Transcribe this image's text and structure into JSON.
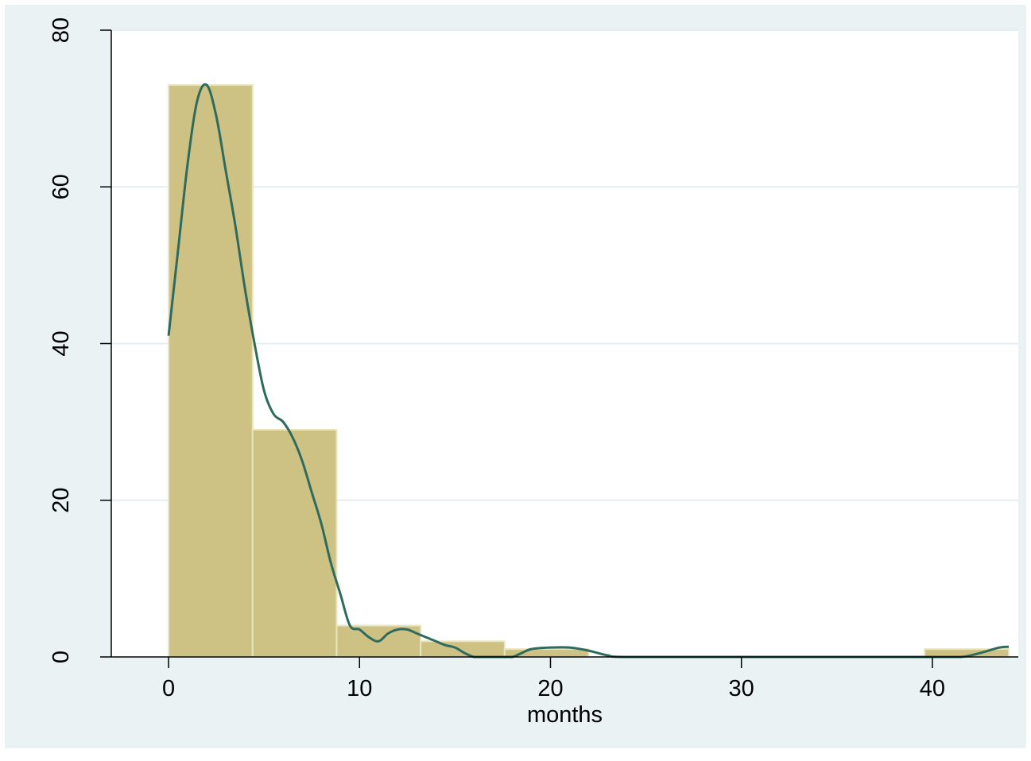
{
  "chart_data": {
    "type": "histogram",
    "title": "",
    "xlabel": "months",
    "ylabel": "",
    "xlim": [
      -3,
      44.5
    ],
    "ylim": [
      0,
      80
    ],
    "x_ticks": [
      0,
      10,
      20,
      30,
      40
    ],
    "y_ticks": [
      0,
      20,
      40,
      60,
      80
    ],
    "x_tick_labels": [
      "0",
      "10",
      "20",
      "30",
      "40"
    ],
    "y_tick_labels": [
      "0",
      "20",
      "40",
      "60",
      "80"
    ],
    "grid": "horizontal",
    "bins": [
      {
        "start": 0.0,
        "end": 4.4,
        "value": 73
      },
      {
        "start": 4.4,
        "end": 8.8,
        "value": 29
      },
      {
        "start": 8.8,
        "end": 13.2,
        "value": 4
      },
      {
        "start": 13.2,
        "end": 17.6,
        "value": 2
      },
      {
        "start": 17.6,
        "end": 22.0,
        "value": 1
      },
      {
        "start": 22.0,
        "end": 26.4,
        "value": 0
      },
      {
        "start": 26.4,
        "end": 30.8,
        "value": 0
      },
      {
        "start": 30.8,
        "end": 35.2,
        "value": 0
      },
      {
        "start": 35.2,
        "end": 39.6,
        "value": 0
      },
      {
        "start": 39.6,
        "end": 44.0,
        "value": 1
      }
    ],
    "density_curve": {
      "x": [
        0,
        0.5,
        1,
        1.5,
        2,
        2.5,
        3,
        3.5,
        4,
        4.5,
        5,
        5.5,
        6,
        6.5,
        7,
        7.5,
        8,
        8.5,
        9,
        9.5,
        10,
        10.5,
        11,
        11.5,
        12,
        12.5,
        13,
        13.5,
        14,
        14.5,
        15,
        15.5,
        16,
        16.5,
        17,
        17.5,
        18,
        18.5,
        19,
        20,
        21,
        22,
        23,
        24,
        30,
        35,
        40,
        41.5,
        42.5,
        43.5,
        44
      ],
      "y": [
        41,
        52,
        63,
        71,
        73,
        69,
        62,
        55,
        47,
        40,
        34,
        31,
        30,
        28,
        25,
        21,
        17,
        12,
        8,
        4,
        3.5,
        2.5,
        2,
        3,
        3.5,
        3.5,
        3,
        2.5,
        2,
        1.5,
        1.2,
        0.5,
        0,
        0,
        0,
        0,
        0,
        0.5,
        1,
        1.2,
        1.2,
        0.8,
        0.2,
        0,
        0,
        0,
        0,
        0,
        0.5,
        1.2,
        1.3
      ],
      "color": "#2e6b5e"
    },
    "bar_color": "#cdc283",
    "bar_edge_color": "#e8e4c0",
    "background_color": "#eaf2f3",
    "plot_background_color": "#ffffff",
    "grid_color": "#e4eef0"
  }
}
